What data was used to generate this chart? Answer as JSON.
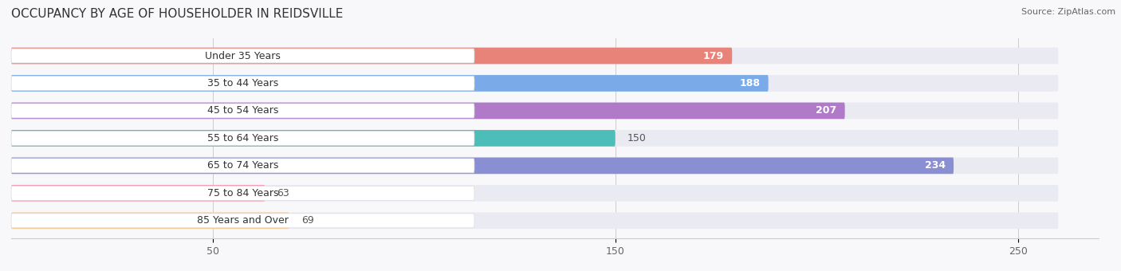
{
  "title": "OCCUPANCY BY AGE OF HOUSEHOLDER IN REIDSVILLE",
  "source": "Source: ZipAtlas.com",
  "categories": [
    "Under 35 Years",
    "35 to 44 Years",
    "45 to 54 Years",
    "55 to 64 Years",
    "65 to 74 Years",
    "75 to 84 Years",
    "85 Years and Over"
  ],
  "values": [
    179,
    188,
    207,
    150,
    234,
    63,
    69
  ],
  "bar_colors": [
    "#E8837A",
    "#7AABE8",
    "#B07AC8",
    "#4DBDBA",
    "#8A8FD4",
    "#F0A0B8",
    "#F5C99A"
  ],
  "bar_bg_color": "#EAEAF2",
  "value_label_inside": [
    true,
    true,
    true,
    false,
    true,
    false,
    false
  ],
  "xlim_data": [
    0,
    260
  ],
  "xticks": [
    50,
    150,
    250
  ],
  "title_fontsize": 11,
  "label_fontsize": 9,
  "value_fontsize": 9,
  "background_color": "#F8F8FA",
  "bar_height": 0.6,
  "label_box_color": "#FFFFFF",
  "label_text_color": "#333333"
}
